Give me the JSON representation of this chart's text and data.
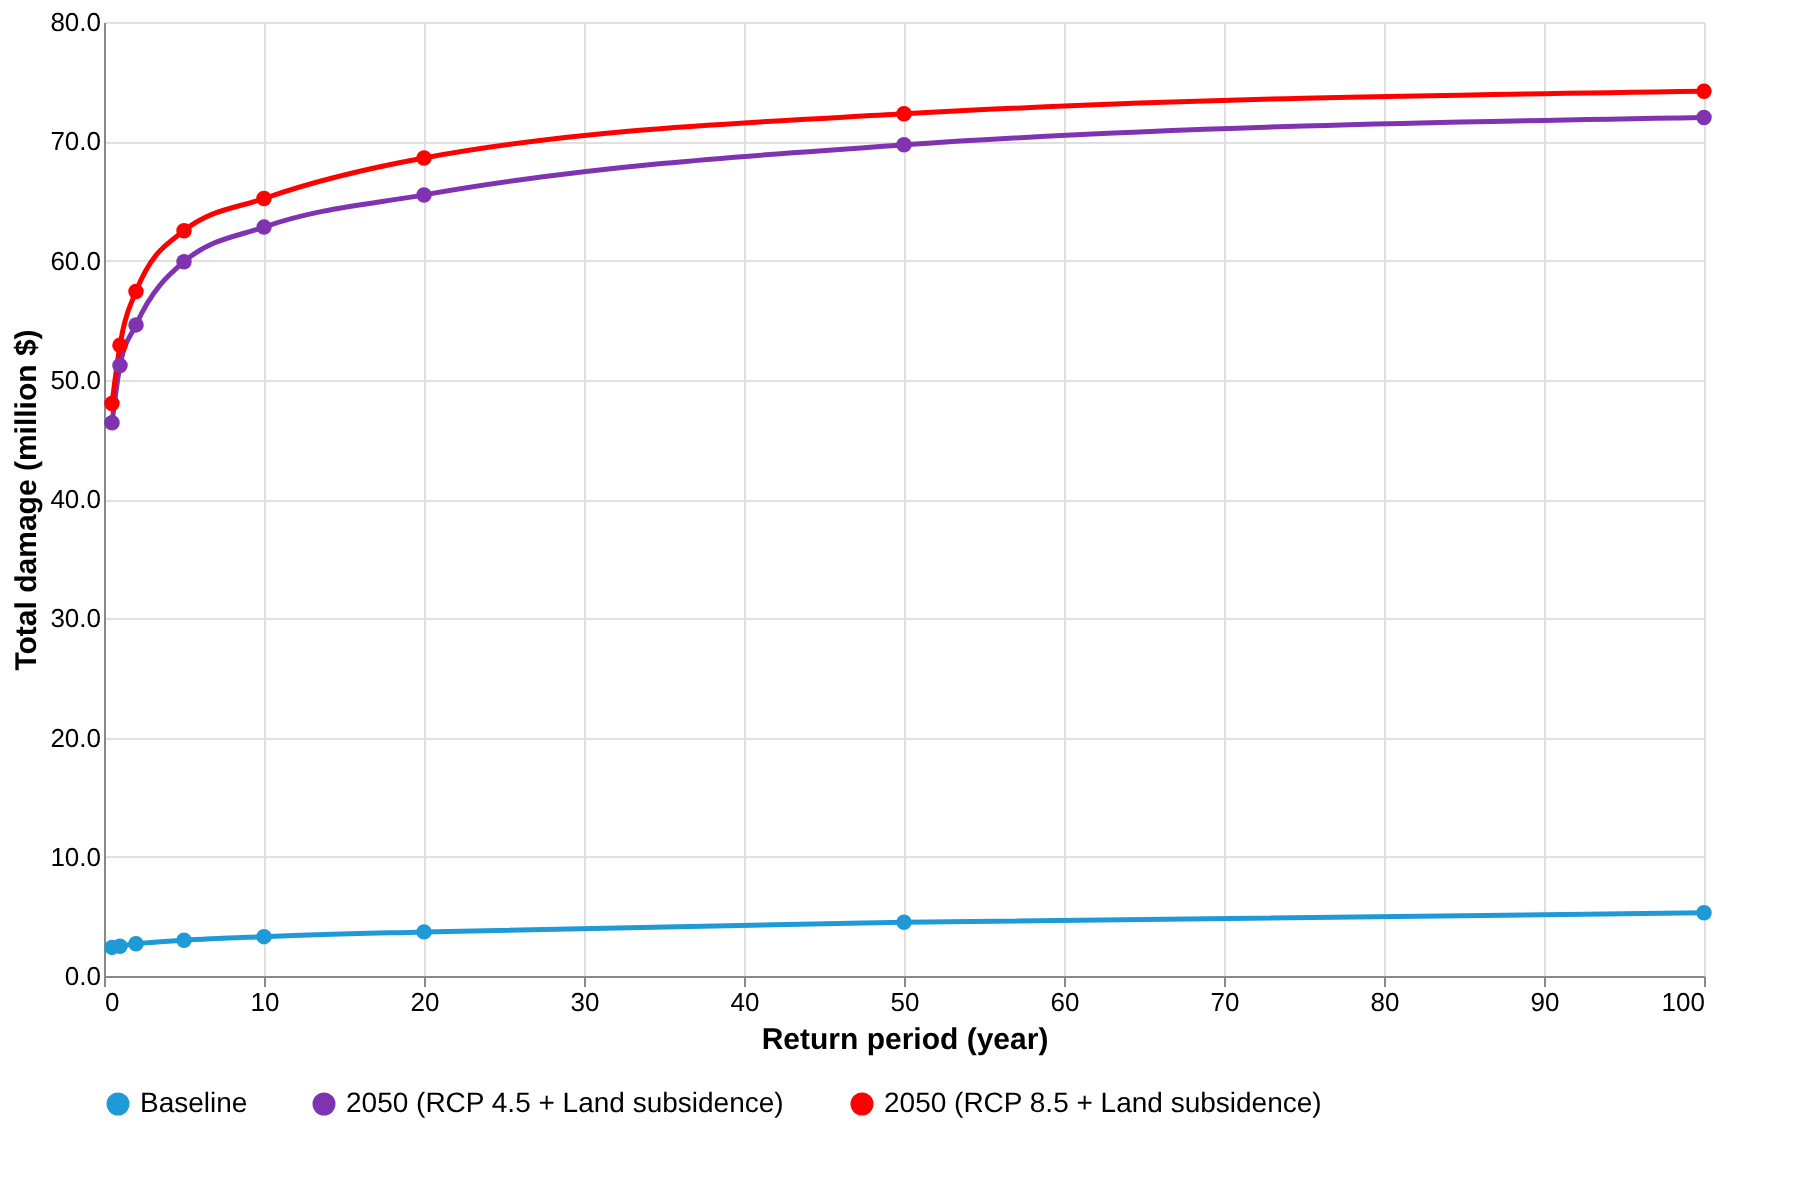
{
  "chart_data": {
    "type": "line",
    "xlabel": "Return period (year)",
    "ylabel": "Total damage (million $)",
    "x": [
      0.5,
      1,
      2,
      5,
      10,
      20,
      50,
      100
    ],
    "series": [
      {
        "name": "Baseline",
        "color": "#1f9ad6",
        "values": [
          2.4,
          2.5,
          2.7,
          3.0,
          3.3,
          3.7,
          4.5,
          5.3
        ]
      },
      {
        "name": "2050 (RCP 4.5 + Land subsidence)",
        "color": "#7f33b0",
        "values": [
          46.4,
          51.2,
          54.6,
          59.9,
          62.8,
          65.5,
          69.7,
          72.0
        ]
      },
      {
        "name": "2050 (RCP 8.5 + Land subsidence)",
        "color": "#ff0000",
        "values": [
          48.0,
          52.9,
          57.4,
          62.5,
          65.2,
          68.6,
          72.3,
          74.2
        ]
      }
    ],
    "xlim": [
      0,
      100
    ],
    "xticks": [
      0,
      10,
      20,
      30,
      40,
      50,
      60,
      70,
      80,
      90,
      100
    ],
    "ylim": [
      0,
      80
    ],
    "yticks": [
      {
        "value": 0,
        "label": "0.0"
      },
      {
        "value": 10,
        "label": "10.0"
      },
      {
        "value": 20,
        "label": "20.0"
      },
      {
        "value": 30,
        "label": "30.0"
      },
      {
        "value": 40,
        "label": "40.0"
      },
      {
        "value": 50,
        "label": "50.0"
      },
      {
        "value": 60,
        "label": "60.0"
      },
      {
        "value": 70,
        "label": "70.0"
      },
      {
        "value": 80,
        "label": "80.0"
      }
    ],
    "grid": true,
    "legend": "bottom",
    "marker": "circle",
    "line_style": "solid"
  }
}
